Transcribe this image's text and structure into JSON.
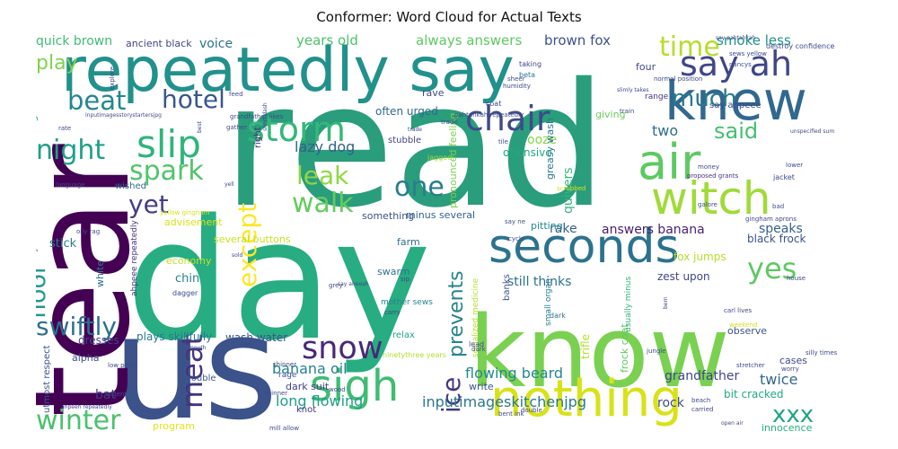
{
  "title": "Conformer: Word Cloud for Actual Texts",
  "chart_data": {
    "type": "word_cloud",
    "title": "Conformer: Word Cloud for Actual Texts",
    "colormap": "viridis",
    "background": "#ffffff",
    "words": [
      {
        "text": "read",
        "weight": 100,
        "color": "#2a9d7c"
      },
      {
        "text": "day",
        "weight": 95,
        "color": "#27ad81"
      },
      {
        "text": "us",
        "weight": 85,
        "color": "#3b528b"
      },
      {
        "text": "tear",
        "weight": 82,
        "color": "#440154"
      },
      {
        "text": "know",
        "weight": 80,
        "color": "#7ad151"
      },
      {
        "text": "repeatedly say",
        "weight": 55,
        "color": "#21918c"
      },
      {
        "text": "knew",
        "weight": 48,
        "color": "#31688e"
      },
      {
        "text": "seconds",
        "weight": 46,
        "color": "#2c728e"
      },
      {
        "text": "nothing",
        "weight": 45,
        "color": "#d8e219"
      },
      {
        "text": "air",
        "weight": 44,
        "color": "#5ec962"
      },
      {
        "text": "witch",
        "weight": 42,
        "color": "#a0da39"
      },
      {
        "text": "sigh",
        "weight": 40,
        "color": "#3fbc73"
      },
      {
        "text": "storm",
        "weight": 35,
        "color": "#35b779"
      },
      {
        "text": "say ah",
        "weight": 34,
        "color": "#404688"
      },
      {
        "text": "chair",
        "weight": 33,
        "color": "#3e4a89"
      },
      {
        "text": "slip",
        "weight": 32,
        "color": "#2fb47c"
      },
      {
        "text": "snow",
        "weight": 30,
        "color": "#482878"
      },
      {
        "text": "meat",
        "weight": 29,
        "color": "#46337e"
      },
      {
        "text": "winter",
        "weight": 29,
        "color": "#4ac16d"
      },
      {
        "text": "yes",
        "weight": 28,
        "color": "#5ec962"
      },
      {
        "text": "night",
        "weight": 27,
        "color": "#1fa088"
      },
      {
        "text": "hotel",
        "weight": 27,
        "color": "#38588c"
      },
      {
        "text": "spark",
        "weight": 27,
        "color": "#50c46a"
      },
      {
        "text": "time",
        "weight": 26,
        "color": "#b5de2b"
      },
      {
        "text": "beat",
        "weight": 26,
        "color": "#24868e"
      },
      {
        "text": "walk",
        "weight": 26,
        "color": "#65cb5e"
      },
      {
        "text": "except",
        "weight": 26,
        "color": "#fde725"
      },
      {
        "text": "ice",
        "weight": 26,
        "color": "#453781"
      },
      {
        "text": "leak",
        "weight": 25,
        "color": "#8fd744"
      },
      {
        "text": "one",
        "weight": 25,
        "color": "#287d8e"
      },
      {
        "text": "swiftly",
        "weight": 25,
        "color": "#2d708e"
      },
      {
        "text": "floor",
        "weight": 25,
        "color": "#1f988b"
      },
      {
        "text": "yet",
        "weight": 24,
        "color": "#433e85"
      },
      {
        "text": "much",
        "weight": 22,
        "color": "#297b8e"
      },
      {
        "text": "said",
        "weight": 22,
        "color": "#44bf70"
      },
      {
        "text": "prevents",
        "weight": 22,
        "color": "#25848e"
      },
      {
        "text": "xxx",
        "weight": 20,
        "color": "#20a386"
      },
      {
        "text": "play",
        "weight": 20,
        "color": "#7fd34e"
      },
      {
        "text": "two",
        "weight": 18,
        "color": "#2e6e8e"
      },
      {
        "text": "banana oil",
        "weight": 16,
        "color": "#26828e"
      },
      {
        "text": "flowing beard",
        "weight": 16,
        "color": "#23888e"
      },
      {
        "text": "lazy dog",
        "weight": 15,
        "color": "#355f8d"
      },
      {
        "text": "long flowing",
        "weight": 15,
        "color": "#1f9e89"
      },
      {
        "text": "inputimageskitchenjpg",
        "weight": 15,
        "color": "#2a788e"
      },
      {
        "text": "smoke less",
        "weight": 15,
        "color": "#20928c"
      },
      {
        "text": "brown fox",
        "weight": 14,
        "color": "#3b528b"
      },
      {
        "text": "always answers",
        "weight": 14,
        "color": "#5ec962"
      },
      {
        "text": "years old",
        "weight": 14,
        "color": "#4ac16d"
      },
      {
        "text": "quick brown",
        "weight": 14,
        "color": "#3fbc73"
      },
      {
        "text": "voice",
        "weight": 14,
        "color": "#2c728e"
      },
      {
        "text": "grandfather",
        "weight": 14,
        "color": "#3f4889"
      },
      {
        "text": "twice",
        "weight": 14,
        "color": "#31688e"
      },
      {
        "text": "answers banana",
        "weight": 13,
        "color": "#481f70"
      },
      {
        "text": "rake",
        "weight": 13,
        "color": "#35608d"
      },
      {
        "text": "speaks",
        "weight": 13,
        "color": "#355f8d"
      },
      {
        "text": "still thinks",
        "weight": 13,
        "color": "#2d708e"
      },
      {
        "text": "quivers",
        "weight": 13,
        "color": "#35b779"
      },
      {
        "text": "bat",
        "weight": 13,
        "color": "#443983"
      },
      {
        "text": "rock",
        "weight": 13,
        "color": "#3d4d8a"
      },
      {
        "text": "dresses",
        "weight": 12,
        "color": "#414487"
      },
      {
        "text": "plays skillfully",
        "weight": 12,
        "color": "#2a788e"
      },
      {
        "text": "wash water",
        "weight": 12,
        "color": "#3b528b"
      },
      {
        "text": "chin",
        "weight": 12,
        "color": "#26828e"
      },
      {
        "text": "stick",
        "weight": 12,
        "color": "#287d8e"
      },
      {
        "text": "offensive",
        "weight": 12,
        "color": "#22a884"
      },
      {
        "text": "ooze",
        "weight": 12,
        "color": "#86d549"
      },
      {
        "text": "often urged",
        "weight": 12,
        "color": "#31688e"
      },
      {
        "text": "ancient black",
        "weight": 11,
        "color": "#414487"
      },
      {
        "text": "beard clings",
        "weight": 11,
        "color": "#1f9e89"
      },
      {
        "text": "pronounced feeling",
        "weight": 11,
        "color": "#7ad151"
      },
      {
        "text": "greasy wash",
        "weight": 11,
        "color": "#2a788e"
      },
      {
        "text": "giving",
        "weight": 11,
        "color": "#6ccd5a"
      },
      {
        "text": "four",
        "weight": 11,
        "color": "#3e4a89"
      },
      {
        "text": "zest upon",
        "weight": 11,
        "color": "#404688"
      },
      {
        "text": "fox jumps",
        "weight": 11,
        "color": "#b5de2b"
      },
      {
        "text": "black frock",
        "weight": 11,
        "color": "#3b528b"
      },
      {
        "text": "bit cracked",
        "weight": 11,
        "color": "#22a884"
      },
      {
        "text": "trifle",
        "weight": 11,
        "color": "#b5de2b"
      },
      {
        "text": "frock coat",
        "weight": 11,
        "color": "#5ec962"
      },
      {
        "text": "pitting",
        "weight": 11,
        "color": "#238a8d"
      },
      {
        "text": "farm",
        "weight": 11,
        "color": "#2e6e8e"
      },
      {
        "text": "swarm",
        "weight": 11,
        "color": "#2c728e"
      },
      {
        "text": "minus several",
        "weight": 11,
        "color": "#355f8d"
      },
      {
        "text": "economy",
        "weight": 10,
        "color": "#c2df23"
      },
      {
        "text": "several buttons",
        "weight": 10,
        "color": "#c8e020"
      },
      {
        "text": "something",
        "weight": 10,
        "color": "#3b528b"
      },
      {
        "text": "white",
        "weight": 10,
        "color": "#2c728e"
      },
      {
        "text": "alpha",
        "weight": 10,
        "color": "#3e4a89"
      },
      {
        "text": "trouble",
        "weight": 10,
        "color": "#38588c"
      },
      {
        "text": "program",
        "weight": 10,
        "color": "#e5e419"
      },
      {
        "text": "wished",
        "weight": 10,
        "color": "#2f6c8e"
      },
      {
        "text": "dark suit",
        "weight": 10,
        "color": "#433e85"
      },
      {
        "text": "knot",
        "weight": 10,
        "color": "#46337e"
      },
      {
        "text": "write",
        "weight": 10,
        "color": "#3b528b"
      },
      {
        "text": "relax",
        "weight": 10,
        "color": "#1fa088"
      },
      {
        "text": "cases",
        "weight": 10,
        "color": "#3e4a89"
      },
      {
        "text": "innocence",
        "weight": 10,
        "color": "#27ad81"
      },
      {
        "text": "advisement",
        "weight": 10,
        "color": "#d8e219"
      },
      {
        "text": "utmost respect",
        "weight": 10,
        "color": "#3b528b"
      },
      {
        "text": "nearly ninetythree",
        "weight": 9,
        "color": "#2c728e"
      },
      {
        "text": "ahpeee repeatedly",
        "weight": 9,
        "color": "#46337e"
      },
      {
        "text": "usually minus",
        "weight": 9,
        "color": "#2fb47c"
      },
      {
        "text": "small organ",
        "weight": 9,
        "color": "#287d8e"
      },
      {
        "text": "socialized medicine",
        "weight": 9,
        "color": "#b5de2b"
      },
      {
        "text": "mother sews",
        "weight": 9,
        "color": "#26828e"
      },
      {
        "text": "rave",
        "weight": 9,
        "color": "#3e4a89"
      },
      {
        "text": "stubble",
        "weight": 9,
        "color": "#414487"
      },
      {
        "text": "range",
        "weight": 9,
        "color": "#46337e"
      },
      {
        "text": "right",
        "weight": 9,
        "color": "#472d7b"
      },
      {
        "text": "say ahpeee",
        "weight": 9,
        "color": "#3e4a89"
      },
      {
        "text": "banks",
        "weight": 9,
        "color": "#3b528b"
      },
      {
        "text": "jacket",
        "weight": 8,
        "color": "#3e4a89"
      },
      {
        "text": "dagger",
        "weight": 8,
        "color": "#3e4a89"
      },
      {
        "text": "beta",
        "weight": 8,
        "color": "#2a788e"
      },
      {
        "text": "taking",
        "weight": 8,
        "color": "#414487"
      },
      {
        "text": "rage",
        "weight": 8,
        "color": "#3b528b"
      },
      {
        "text": "jagged",
        "weight": 8,
        "color": "#a0da39"
      },
      {
        "text": "tile",
        "weight": 8,
        "color": "#3e4a89"
      },
      {
        "text": "trade",
        "weight": 8,
        "color": "#3b528b"
      },
      {
        "text": "feed",
        "weight": 8,
        "color": "#3e4a89"
      },
      {
        "text": "lead",
        "weight": 8,
        "color": "#3e4a89"
      },
      {
        "text": "dark",
        "weight": 8,
        "color": "#2c728e"
      },
      {
        "text": "stretcher",
        "weight": 8,
        "color": "#3e4a89"
      },
      {
        "text": "shinner",
        "weight": 8,
        "color": "#3e4a89"
      },
      {
        "text": "scrubbed",
        "weight": 8,
        "color": "#d8e219"
      },
      {
        "text": "destroy confidence",
        "weight": 8,
        "color": "#3e4a89"
      },
      {
        "text": "proposed grants",
        "weight": 8,
        "color": "#46337e"
      },
      {
        "text": "normal position",
        "weight": 8,
        "color": "#3e4a89"
      },
      {
        "text": "sews yellow",
        "weight": 8,
        "color": "#3e4a89"
      },
      {
        "text": "say pahtahkah",
        "weight": 8,
        "color": "#3e4a89"
      },
      {
        "text": "language",
        "weight": 8,
        "color": "#3e4a89"
      },
      {
        "text": "carl lives",
        "weight": 8,
        "color": "#3e4a89"
      },
      {
        "text": "grandfather likes",
        "weight": 8,
        "color": "#3e4a89"
      },
      {
        "text": "pahtahkah repeatedly",
        "weight": 8,
        "color": "#3e4a89"
      },
      {
        "text": "ninetythree years",
        "weight": 8,
        "color": "#b5de2b"
      },
      {
        "text": "low pitch",
        "weight": 7,
        "color": "#3e4a89"
      },
      {
        "text": "mill allow",
        "weight": 7,
        "color": "#3e4a89"
      },
      {
        "text": "double",
        "weight": 7,
        "color": "#3e4a89"
      },
      {
        "text": "jungle",
        "weight": 7,
        "color": "#3e4a89"
      },
      {
        "text": "observe",
        "weight": 9,
        "color": "#3b528b"
      },
      {
        "text": "gingham aprons",
        "weight": 7,
        "color": "#3e4a89"
      },
      {
        "text": "beach",
        "weight": 7,
        "color": "#3e4a89"
      },
      {
        "text": "thinner",
        "weight": 7,
        "color": "#3e4a89"
      },
      {
        "text": "urgent",
        "weight": 7,
        "color": "#3e4a89"
      },
      {
        "text": "carry",
        "weight": 7,
        "color": "#3e4a89"
      },
      {
        "text": "silly times",
        "weight": 7,
        "color": "#3e4a89"
      },
      {
        "text": "weekend",
        "weight": 7,
        "color": "#d8e219"
      },
      {
        "text": "gather",
        "weight": 7,
        "color": "#3e4a89"
      },
      {
        "text": "humidity",
        "weight": 7,
        "color": "#3e4a89"
      },
      {
        "text": "nancys",
        "weight": 7,
        "color": "#3e4a89"
      },
      {
        "text": "oily rag",
        "weight": 7,
        "color": "#3e4a89"
      },
      {
        "text": "sheer",
        "weight": 7,
        "color": "#3e4a89"
      },
      {
        "text": "explore",
        "weight": 7,
        "color": "#3e4a89"
      },
      {
        "text": "galore",
        "weight": 7,
        "color": "#3e4a89"
      },
      {
        "text": "money",
        "weight": 7,
        "color": "#3e4a89"
      },
      {
        "text": "yellow gingham",
        "weight": 7,
        "color": "#d8e219"
      },
      {
        "text": "rate",
        "weight": 7,
        "color": "#3e4a89"
      },
      {
        "text": "bad",
        "weight": 7,
        "color": "#3e4a89"
      },
      {
        "text": "cycle",
        "weight": 7,
        "color": "#3e4a89"
      },
      {
        "text": "grey",
        "weight": 7,
        "color": "#3e4a89"
      },
      {
        "text": "sip",
        "weight": 7,
        "color": "#3e4a89"
      },
      {
        "text": "house",
        "weight": 7,
        "color": "#3e4a89"
      },
      {
        "text": "train",
        "weight": 7,
        "color": "#3e4a89"
      },
      {
        "text": "worry",
        "weight": 7,
        "color": "#3e4a89"
      },
      {
        "text": "dark",
        "weight": 7,
        "color": "#3e4a89"
      },
      {
        "text": "bent ink",
        "weight": 7,
        "color": "#3e4a89"
      },
      {
        "text": "carried",
        "weight": 7,
        "color": "#3e4a89"
      },
      {
        "text": "lower",
        "weight": 7,
        "color": "#3e4a89"
      },
      {
        "text": "say ne",
        "weight": 7,
        "color": "#3e4a89"
      },
      {
        "text": "coat",
        "weight": 8,
        "color": "#3e4a89"
      },
      {
        "text": "inputimagesstorystartersjpg",
        "weight": 7,
        "color": "#3e4a89"
      },
      {
        "text": "ahpeeh repeatedly",
        "weight": 7,
        "color": "#3e4a89"
      },
      {
        "text": "say aheeah",
        "weight": 7,
        "color": "#3e4a89"
      },
      {
        "text": "unspecified sum",
        "weight": 7,
        "color": "#3e4a89"
      },
      {
        "text": "short dash",
        "weight": 7,
        "color": "#3e4a89"
      },
      {
        "text": "slimly takes",
        "weight": 7,
        "color": "#3e4a89"
      },
      {
        "text": "open air",
        "weight": 7,
        "color": "#3e4a89"
      },
      {
        "text": "mouth",
        "weight": 7,
        "color": "#3e4a89"
      },
      {
        "text": "feet",
        "weight": 7,
        "color": "#3e4a89"
      },
      {
        "text": "wood",
        "weight": 7,
        "color": "#3e4a89"
      },
      {
        "text": "sold",
        "weight": 7,
        "color": "#3e4a89"
      },
      {
        "text": "trade",
        "weight": 7,
        "color": "#3e4a89"
      },
      {
        "text": "best",
        "weight": 7,
        "color": "#3e4a89"
      },
      {
        "text": "yell",
        "weight": 7,
        "color": "#3e4a89"
      },
      {
        "text": "bern",
        "weight": 7,
        "color": "#3e4a89"
      }
    ]
  }
}
